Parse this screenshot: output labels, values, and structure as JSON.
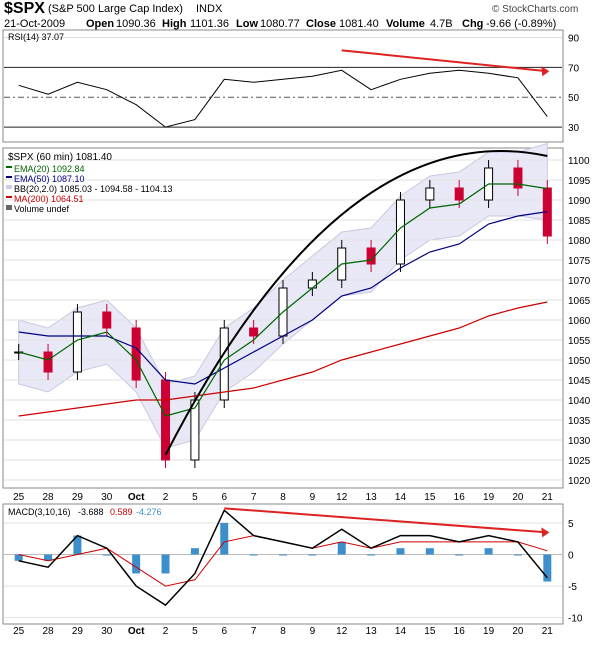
{
  "header": {
    "symbol": "$SPX",
    "name": "(S&P 500 Large Cap Index)",
    "exchange": "INDX",
    "date": "21-Oct-2009",
    "open_label": "Open",
    "open": "1090.36",
    "high_label": "High",
    "high": "1101.36",
    "low_label": "Low",
    "low": "1080.77",
    "close_label": "Close",
    "close": "1081.40",
    "volume_label": "Volume",
    "volume": "4.7B",
    "chg_label": "Chg",
    "chg": "-9.66 (-0.89%)",
    "watermark": "© StockCharts.com"
  },
  "rsi_panel": {
    "legend": "RSI(14) 37.07",
    "ticks": [
      "90",
      "70",
      "50",
      "30"
    ]
  },
  "price_panel": {
    "legend": {
      "main": "$SPX (60 min) 1081.40",
      "ema20": "EMA(20) 1092.84",
      "ema50": "EMA(50) 1087.10",
      "bb": "BB(20,2.0) 1085.03 - 1094.58 - 1104.13",
      "ma200": "MA(200) 1064.51",
      "volume": "Volume undef"
    },
    "ticks": [
      "1100",
      "1095",
      "1090",
      "1085",
      "1080",
      "1075",
      "1070",
      "1065",
      "1060",
      "1055",
      "1050",
      "1045",
      "1040",
      "1035",
      "1030",
      "1025",
      "1020"
    ]
  },
  "macd_panel": {
    "legend_label": "MACD(3,10,16)",
    "macd": "-3.688",
    "signal": "0.589",
    "hist": "-4.276",
    "ticks": [
      "5",
      "0",
      "-5",
      "-10"
    ]
  },
  "x_labels": [
    "25",
    "28",
    "29",
    "30",
    "Oct",
    "2",
    "5",
    "6",
    "7",
    "8",
    "9",
    "12",
    "13",
    "14",
    "15",
    "16",
    "19",
    "20",
    "21"
  ],
  "colors": {
    "up": "#000000",
    "down": "#cc0033",
    "ema20": "#006600",
    "ema50": "#000080",
    "ma200": "#cc0000",
    "bb_fill": "#e8e8f6",
    "hist": "#3d8fcc",
    "annotation": "#dd2222"
  },
  "chart_data": [
    {
      "type": "line",
      "title": "RSI(14) 37.07",
      "ylim": [
        20,
        95
      ],
      "ticks": [
        90,
        70,
        50,
        30
      ],
      "x": [
        "25",
        "28",
        "29",
        "30",
        "Oct",
        "2",
        "5",
        "6",
        "7",
        "8",
        "9",
        "12",
        "13",
        "14",
        "15",
        "16",
        "19",
        "20",
        "21"
      ],
      "series": [
        {
          "name": "RSI(14)",
          "values": [
            58,
            52,
            60,
            55,
            45,
            30,
            35,
            62,
            60,
            62,
            64,
            68,
            55,
            62,
            66,
            68,
            66,
            63,
            37
          ]
        }
      ],
      "annotations": [
        "downward trendline over RSI highs"
      ]
    },
    {
      "type": "candlestick",
      "title": "$SPX (60 min) 1081.40",
      "ylim": [
        1018,
        1103
      ],
      "ticks": [
        1100,
        1095,
        1090,
        1085,
        1080,
        1075,
        1070,
        1065,
        1060,
        1055,
        1050,
        1045,
        1040,
        1035,
        1030,
        1025,
        1020
      ],
      "x": [
        "25",
        "28",
        "29",
        "30",
        "Oct",
        "2",
        "5",
        "6",
        "7",
        "8",
        "9",
        "12",
        "13",
        "14",
        "15",
        "16",
        "19",
        "20",
        "21"
      ],
      "series": [
        {
          "name": "$SPX",
          "values": [
            1052,
            1047,
            1062,
            1058,
            1045,
            1025,
            1040,
            1058,
            1056,
            1068,
            1070,
            1078,
            1074,
            1090,
            1093,
            1090,
            1098,
            1093,
            1081
          ]
        },
        {
          "name": "EMA(20)",
          "values": [
            1052,
            1050,
            1055,
            1057,
            1050,
            1036,
            1038,
            1050,
            1055,
            1062,
            1068,
            1074,
            1075,
            1083,
            1088,
            1089,
            1094,
            1094,
            1092.84
          ]
        },
        {
          "name": "EMA(50)",
          "values": [
            1057,
            1056,
            1056,
            1056,
            1053,
            1045,
            1044,
            1048,
            1052,
            1056,
            1060,
            1066,
            1068,
            1073,
            1077,
            1079,
            1084,
            1086,
            1087.1
          ]
        },
        {
          "name": "MA(200)",
          "values": [
            1036,
            1037,
            1038,
            1039,
            1040,
            1040,
            1041,
            1042,
            1043,
            1045,
            1047,
            1050,
            1052,
            1054,
            1056,
            1058,
            1061,
            1063,
            1064.51
          ]
        }
      ],
      "bollinger": {
        "name": "BB(20,2.0)",
        "lower": 1085.03,
        "middle": 1094.58,
        "upper": 1104.13
      },
      "annotations": [
        "arc drawn over price highs"
      ]
    },
    {
      "type": "line",
      "title": "MACD(3,10,16)",
      "ylim": [
        -11,
        8
      ],
      "ticks": [
        5,
        0,
        -5,
        -10
      ],
      "x": [
        "25",
        "28",
        "29",
        "30",
        "Oct",
        "2",
        "5",
        "6",
        "7",
        "8",
        "9",
        "12",
        "13",
        "14",
        "15",
        "16",
        "19",
        "20",
        "21"
      ],
      "series": [
        {
          "name": "MACD",
          "values": [
            -1,
            -2,
            3,
            1,
            -5,
            -8,
            -3,
            7,
            3,
            2,
            1,
            4,
            1,
            3,
            3,
            2,
            3,
            2,
            -3.688
          ]
        },
        {
          "name": "Signal",
          "values": [
            0,
            -1,
            0,
            1,
            -2,
            -5,
            -4,
            2,
            3,
            2,
            1,
            2,
            1,
            2,
            2,
            2,
            2,
            2,
            0.589
          ]
        },
        {
          "name": "Histogram",
          "values": [
            -1,
            -1,
            3,
            0,
            -3,
            -3,
            1,
            5,
            0,
            0,
            0,
            2,
            0,
            1,
            1,
            0,
            1,
            0,
            -4.276
          ]
        }
      ],
      "annotations": [
        "downward trendline over MACD highs"
      ]
    }
  ]
}
